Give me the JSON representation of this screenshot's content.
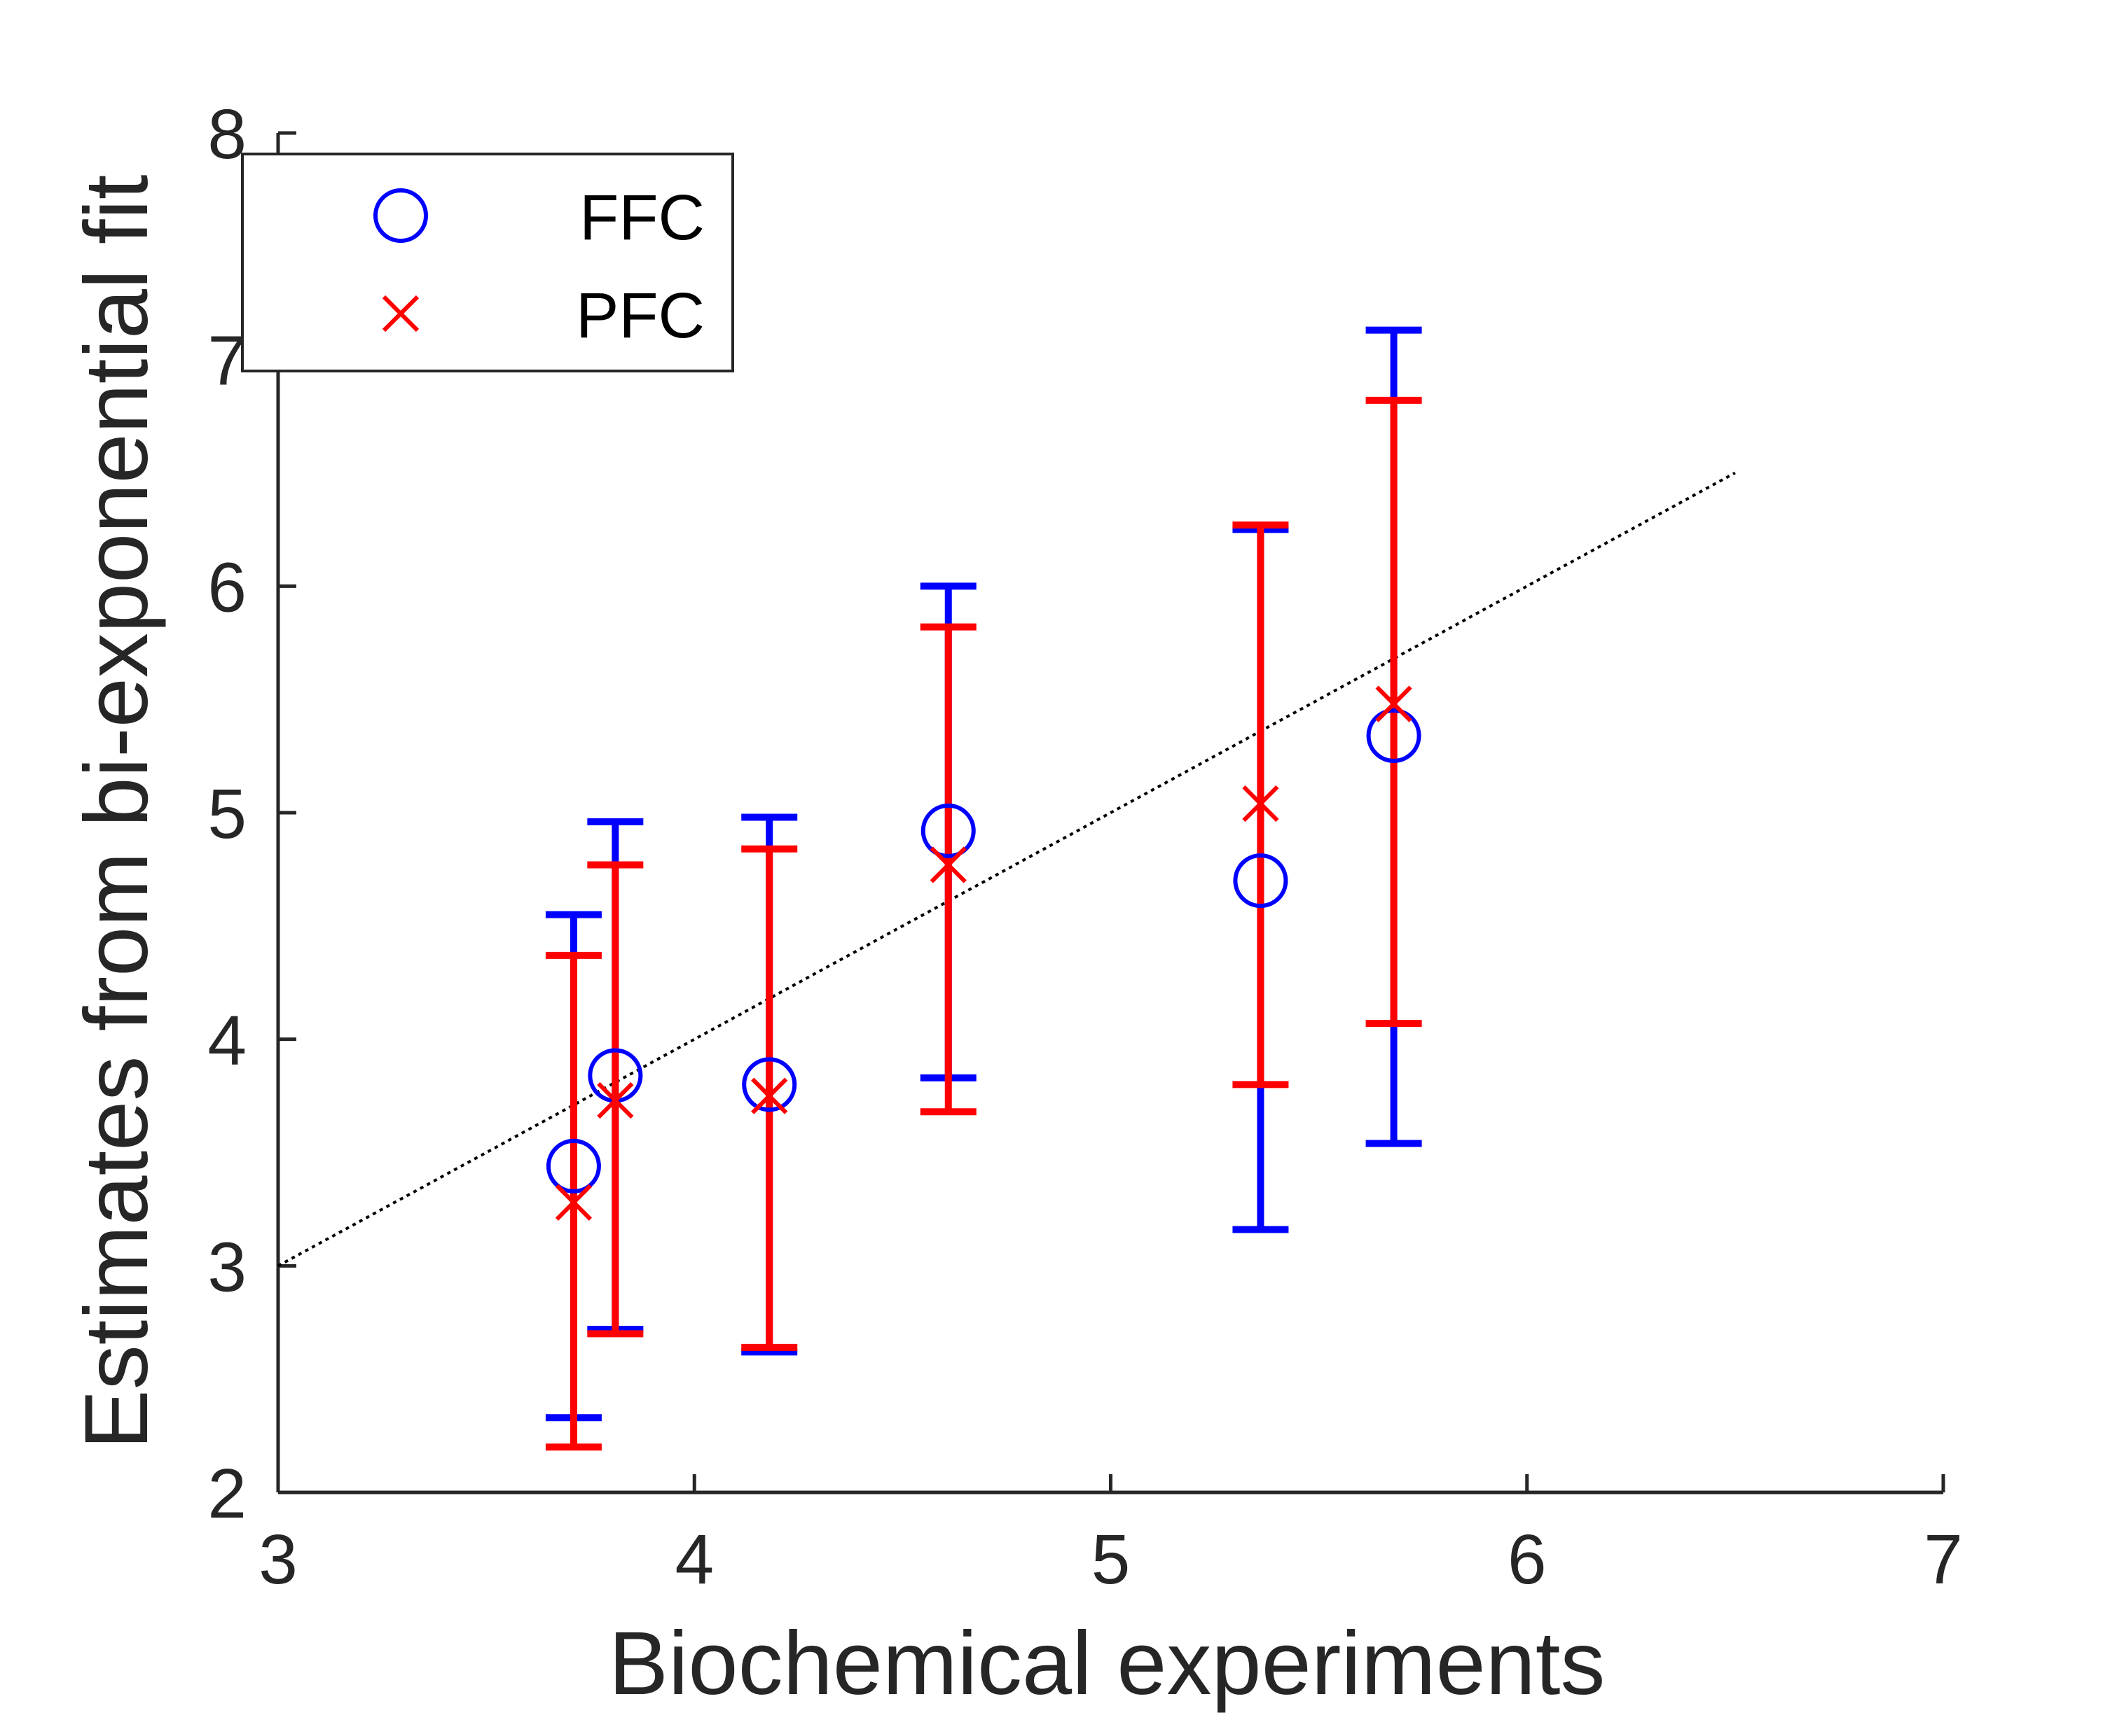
{
  "chart_data": {
    "type": "scatter",
    "xlabel": "Biochemical experiments",
    "ylabel": "Estimates from bi-exponential fit",
    "xlim": [
      3,
      7
    ],
    "ylim": [
      2,
      8
    ],
    "xticks": [
      3,
      4,
      5,
      6,
      7
    ],
    "yticks": [
      2,
      3,
      4,
      5,
      6,
      7,
      8
    ],
    "grid": false,
    "legend_position": "top-left",
    "series": [
      {
        "name": "FFC",
        "marker": "circle",
        "color": "#0000ff",
        "points": [
          {
            "x": 3.71,
            "y": 3.44,
            "ylow": 2.33,
            "yhigh": 4.55
          },
          {
            "x": 3.81,
            "y": 3.84,
            "ylow": 2.72,
            "yhigh": 4.96
          },
          {
            "x": 4.18,
            "y": 3.8,
            "ylow": 2.62,
            "yhigh": 4.98
          },
          {
            "x": 4.61,
            "y": 4.92,
            "ylow": 3.83,
            "yhigh": 6.0
          },
          {
            "x": 5.36,
            "y": 4.7,
            "ylow": 3.16,
            "yhigh": 6.25
          },
          {
            "x": 5.68,
            "y": 5.34,
            "ylow": 3.54,
            "yhigh": 7.13
          }
        ]
      },
      {
        "name": "PFC",
        "marker": "x",
        "color": "#ff0000",
        "points": [
          {
            "x": 3.71,
            "y": 3.28,
            "ylow": 2.2,
            "yhigh": 4.37
          },
          {
            "x": 3.81,
            "y": 3.73,
            "ylow": 2.7,
            "yhigh": 4.77
          },
          {
            "x": 4.18,
            "y": 3.75,
            "ylow": 2.64,
            "yhigh": 4.84
          },
          {
            "x": 4.61,
            "y": 4.77,
            "ylow": 3.68,
            "yhigh": 5.82
          },
          {
            "x": 5.36,
            "y": 5.04,
            "ylow": 3.8,
            "yhigh": 6.27
          },
          {
            "x": 5.68,
            "y": 5.48,
            "ylow": 4.07,
            "yhigh": 6.82
          }
        ]
      }
    ],
    "reference_line": {
      "style": "dotted",
      "color": "#000000",
      "x": [
        3,
        6.5
      ],
      "y": [
        3,
        6.5
      ]
    }
  }
}
